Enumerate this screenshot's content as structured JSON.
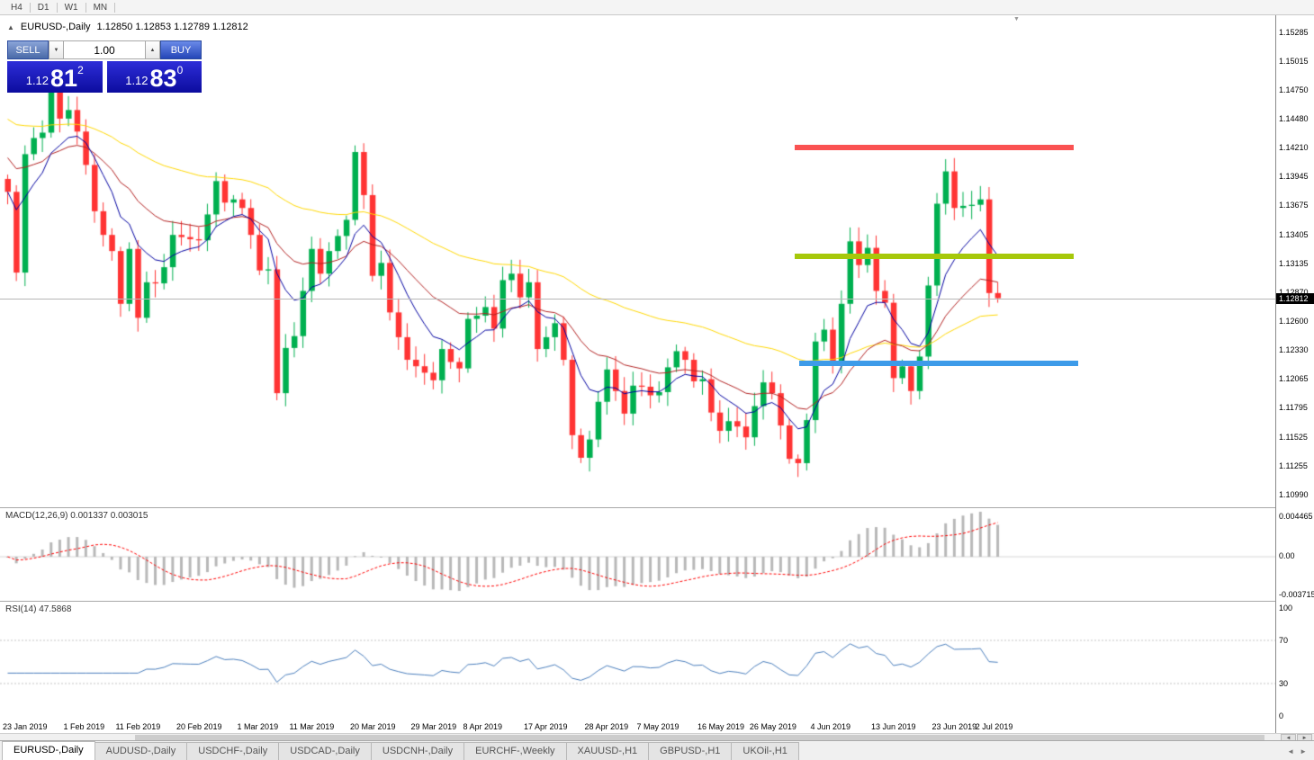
{
  "toolbar": {
    "timeframes": [
      "H4",
      "D1",
      "W1",
      "MN"
    ]
  },
  "chart": {
    "symbol_period": "EURUSD-,Daily",
    "ohlc": "1.12850 1.12853 1.12789 1.12812",
    "current_price": "1.12812",
    "price_scale": [
      "1.15285",
      "1.15015",
      "1.14750",
      "1.14480",
      "1.14210",
      "1.13945",
      "1.13675",
      "1.13405",
      "1.13135",
      "1.12870",
      "1.12600",
      "1.12330",
      "1.12065",
      "1.11795",
      "1.11525",
      "1.11255",
      "1.10990"
    ],
    "dates": [
      "23 Jan 2019",
      "1 Feb 2019",
      "11 Feb 2019",
      "20 Feb 2019",
      "1 Mar 2019",
      "11 Mar 2019",
      "20 Mar 2019",
      "29 Mar 2019",
      "8 Apr 2019",
      "17 Apr 2019",
      "28 Apr 2019",
      "7 May 2019",
      "16 May 2019",
      "26 May 2019",
      "4 Jun 2019",
      "13 Jun 2019",
      "23 Jun 2019",
      "2 Jul 2019"
    ]
  },
  "trade_panel": {
    "sell_label": "SELL",
    "buy_label": "BUY",
    "volume": "1.00",
    "sell_price": {
      "prefix": "1.12",
      "big": "81",
      "pip": "2"
    },
    "buy_price": {
      "prefix": "1.12",
      "big": "83",
      "pip": "0"
    }
  },
  "macd": {
    "label": "MACD(12,26,9) 0.001337 0.003015",
    "scale": [
      "0.004465",
      "0.00",
      "-0.003715"
    ]
  },
  "rsi": {
    "label": "RSI(14) 47.5868",
    "scale": [
      "100",
      "70",
      "30",
      "0"
    ]
  },
  "tabs": [
    {
      "label": "EURUSD-,Daily",
      "active": true
    },
    {
      "label": "AUDUSD-,Daily",
      "active": false
    },
    {
      "label": "USDCHF-,Daily",
      "active": false
    },
    {
      "label": "USDCAD-,Daily",
      "active": false
    },
    {
      "label": "USDCNH-,Daily",
      "active": false
    },
    {
      "label": "EURCHF-,Weekly",
      "active": false
    },
    {
      "label": "XAUUSD-,H1",
      "active": false
    },
    {
      "label": "GBPUSD-,H1",
      "active": false
    },
    {
      "label": "UKOil-,H1",
      "active": false
    }
  ],
  "icons": {
    "collapse": "▲",
    "spin_down": "▼",
    "spin_up": "▲",
    "scroll_left": "◄",
    "scroll_right": "►",
    "shift_marker": "▼"
  },
  "chart_data": {
    "type": "candlestick",
    "symbol": "EURUSD",
    "timeframe": "Daily",
    "first_open": 1.1392,
    "closes": [
      1.138,
      1.1305,
      1.1415,
      1.143,
      1.1435,
      1.148,
      1.1448,
      1.1456,
      1.1436,
      1.1405,
      1.1362,
      1.134,
      1.1325,
      1.1276,
      1.1327,
      1.1263,
      1.1296,
      1.1295,
      1.131,
      1.134,
      1.1338,
      1.1336,
      1.1335,
      1.1359,
      1.139,
      1.137,
      1.1373,
      1.1365,
      1.134,
      1.1307,
      1.1308,
      1.1193,
      1.1235,
      1.1246,
      1.1288,
      1.1327,
      1.1304,
      1.1325,
      1.1339,
      1.1354,
      1.1417,
      1.1377,
      1.1302,
      1.1314,
      1.1268,
      1.1245,
      1.1224,
      1.1218,
      1.1212,
      1.1205,
      1.1234,
      1.1222,
      1.1216,
      1.1262,
      1.1265,
      1.1273,
      1.1253,
      1.1298,
      1.1304,
      1.1282,
      1.1296,
      1.1234,
      1.1245,
      1.1258,
      1.1224,
      1.1154,
      1.1133,
      1.115,
      1.1185,
      1.1215,
      1.1195,
      1.1174,
      1.12,
      1.1199,
      1.1191,
      1.1194,
      1.1217,
      1.1232,
      1.1224,
      1.1204,
      1.1206,
      1.1175,
      1.1158,
      1.1167,
      1.1162,
      1.1152,
      1.1181,
      1.1203,
      1.1193,
      1.1163,
      1.1132,
      1.1128,
      1.1168,
      1.1241,
      1.1252,
      1.1222,
      1.1276,
      1.1334,
      1.1312,
      1.1328,
      1.1288,
      1.1277,
      1.1207,
      1.1218,
      1.1195,
      1.1227,
      1.1293,
      1.1369,
      1.1399,
      1.1365,
      1.1367,
      1.1368,
      1.1373,
      1.1286,
      1.12812
    ],
    "levels": {
      "resistance": 1.1421,
      "pivot": 1.132,
      "support": 1.1221,
      "bid": 1.12812
    },
    "indicators": {
      "ma_fast_period": 8,
      "ma_mid_period": 20,
      "ma_slow_period": 55,
      "macd_params": [
        12,
        26,
        9
      ],
      "macd_value": 0.001337,
      "macd_signal": 0.003015,
      "rsi_period": 14,
      "rsi_value": 47.5868
    },
    "colors": {
      "bull": "#00b050",
      "bear": "#ff3434",
      "ma_fast": "#0000a0",
      "ma_mid": "#b22222",
      "ma_slow": "#ffd700",
      "level_resistance": "#fa5252",
      "level_pivot": "#a6c80a",
      "level_support": "#3d9be9",
      "macd_hist": "#b8b8b8",
      "macd_signal_line": "#ff0000",
      "rsi_line": "#4a7ebc"
    },
    "y_axis_range": [
      1.1099,
      1.15285
    ],
    "macd_axis_range": [
      -0.003715,
      0.004465
    ],
    "rsi_axis_range": [
      0,
      100
    ]
  }
}
